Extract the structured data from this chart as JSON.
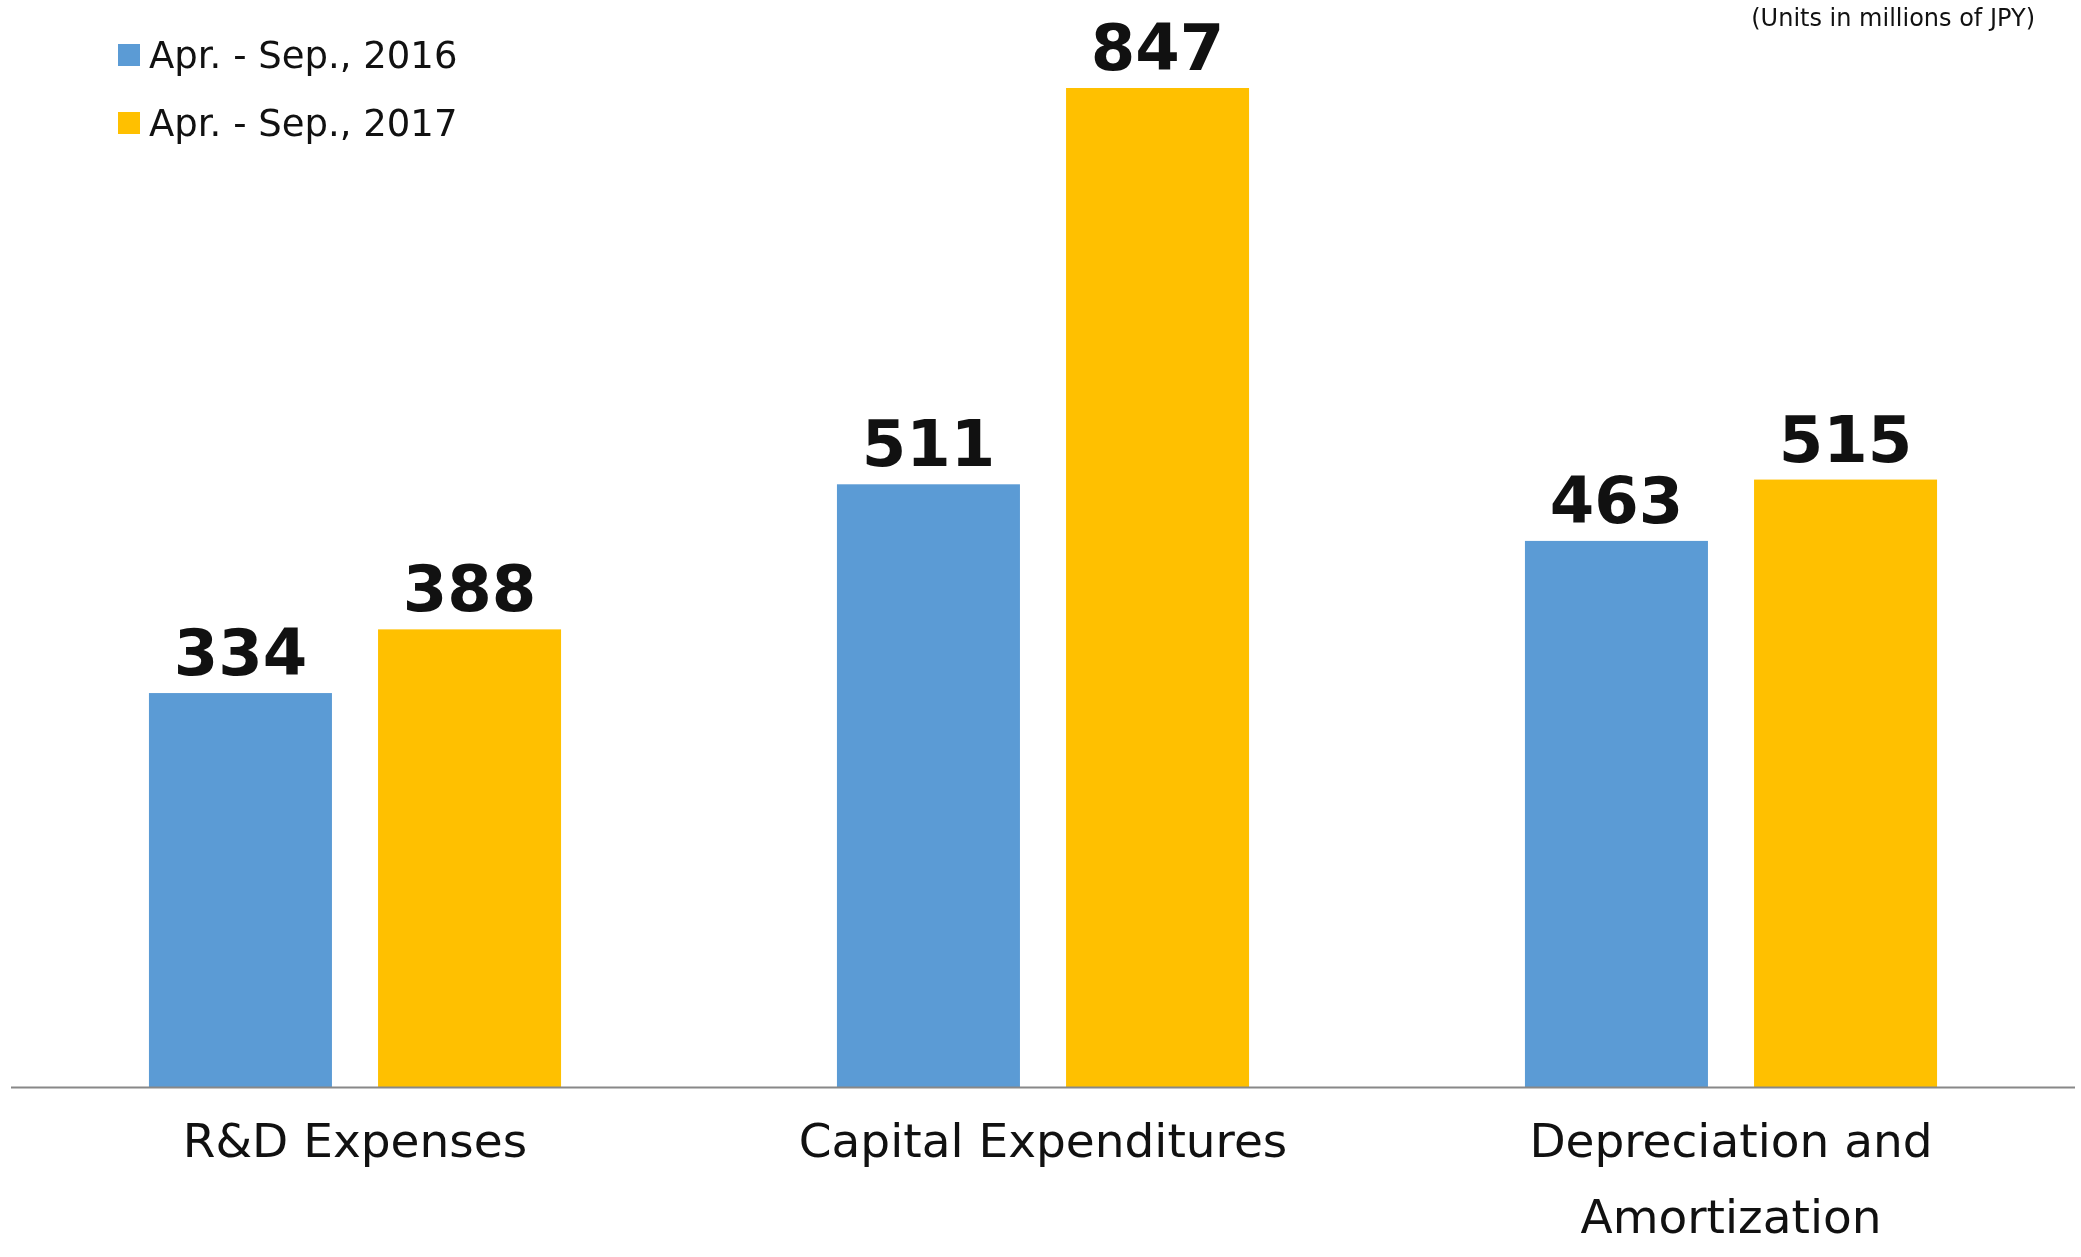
{
  "chart_data": {
    "type": "bar",
    "annotations": [
      "(Units in millions of JPY)"
    ],
    "categories": [
      "R&D Expenses",
      "Capital Expenditures",
      "Depreciation and Amortization"
    ],
    "series": [
      {
        "name": "Apr. - Sep., 2016",
        "color": "#5b9bd5",
        "values": [
          334,
          511,
          463
        ]
      },
      {
        "name": "Apr. - Sep., 2017",
        "color": "#ffc000",
        "values": [
          388,
          847,
          515
        ]
      }
    ],
    "data_labels": true,
    "legend": "top left"
  }
}
